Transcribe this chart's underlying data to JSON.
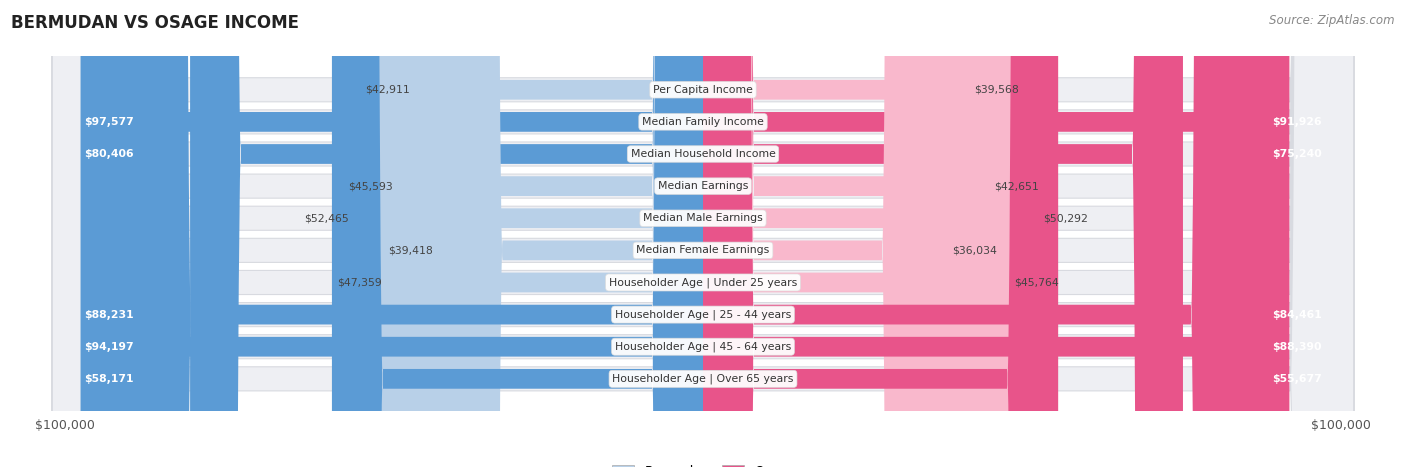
{
  "title": "BERMUDAN VS OSAGE INCOME",
  "source": "Source: ZipAtlas.com",
  "max_value": 100000,
  "bar_blue_light": "#b8d0e8",
  "bar_blue_dark": "#5b9bd5",
  "bar_pink_light": "#f9b8cc",
  "bar_pink_dark": "#e8548a",
  "row_bg": "#eeeff3",
  "row_border": "#d8dae0",
  "categories": [
    "Per Capita Income",
    "Median Family Income",
    "Median Household Income",
    "Median Earnings",
    "Median Male Earnings",
    "Median Female Earnings",
    "Householder Age | Under 25 years",
    "Householder Age | 25 - 44 years",
    "Householder Age | 45 - 64 years",
    "Householder Age | Over 65 years"
  ],
  "bermudan_values": [
    42911,
    97577,
    80406,
    45593,
    52465,
    39418,
    47359,
    88231,
    94197,
    58171
  ],
  "osage_values": [
    39568,
    91926,
    75240,
    42651,
    50292,
    36034,
    45764,
    84461,
    88390,
    55677
  ],
  "bermudan_labels": [
    "$42,911",
    "$97,577",
    "$80,406",
    "$45,593",
    "$52,465",
    "$39,418",
    "$47,359",
    "$88,231",
    "$94,197",
    "$58,171"
  ],
  "osage_labels": [
    "$39,568",
    "$91,926",
    "$75,240",
    "$42,651",
    "$50,292",
    "$36,034",
    "$45,764",
    "$84,461",
    "$88,390",
    "$55,677"
  ],
  "inside_threshold": 0.55
}
